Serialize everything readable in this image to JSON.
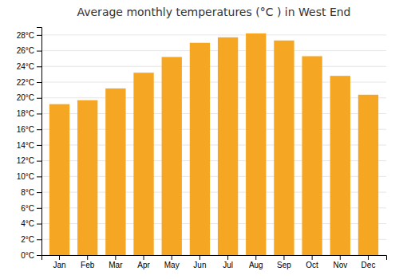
{
  "chart_data": {
    "type": "bar",
    "title": "Average monthly temperatures (°C ) in West End",
    "categories": [
      "Jan",
      "Feb",
      "Mar",
      "Apr",
      "May",
      "Jun",
      "Jul",
      "Aug",
      "Sep",
      "Oct",
      "Nov",
      "Dec"
    ],
    "values": [
      19.2,
      19.7,
      21.2,
      23.2,
      25.2,
      27.0,
      27.7,
      28.2,
      27.3,
      25.3,
      22.8,
      20.4
    ],
    "color": "#F5A623",
    "ylim": [
      0,
      29
    ],
    "yticks": [
      {
        "value": 0,
        "label": "0°C"
      },
      {
        "value": 2,
        "label": "2°C"
      },
      {
        "value": 4,
        "label": "4°C"
      },
      {
        "value": 6,
        "label": "6°C"
      },
      {
        "value": 8,
        "label": "8°C"
      },
      {
        "value": 10,
        "label": "10°C"
      },
      {
        "value": 12,
        "label": "12°C"
      },
      {
        "value": 14,
        "label": "14°C"
      },
      {
        "value": 16,
        "label": "16°C"
      },
      {
        "value": 18,
        "label": "18°C"
      },
      {
        "value": 20,
        "label": "20°C"
      },
      {
        "value": 22,
        "label": "22°C"
      },
      {
        "value": 24,
        "label": "24°C"
      },
      {
        "value": 26,
        "label": "26°C"
      },
      {
        "value": 28,
        "label": "28°C"
      }
    ],
    "grid": true
  }
}
